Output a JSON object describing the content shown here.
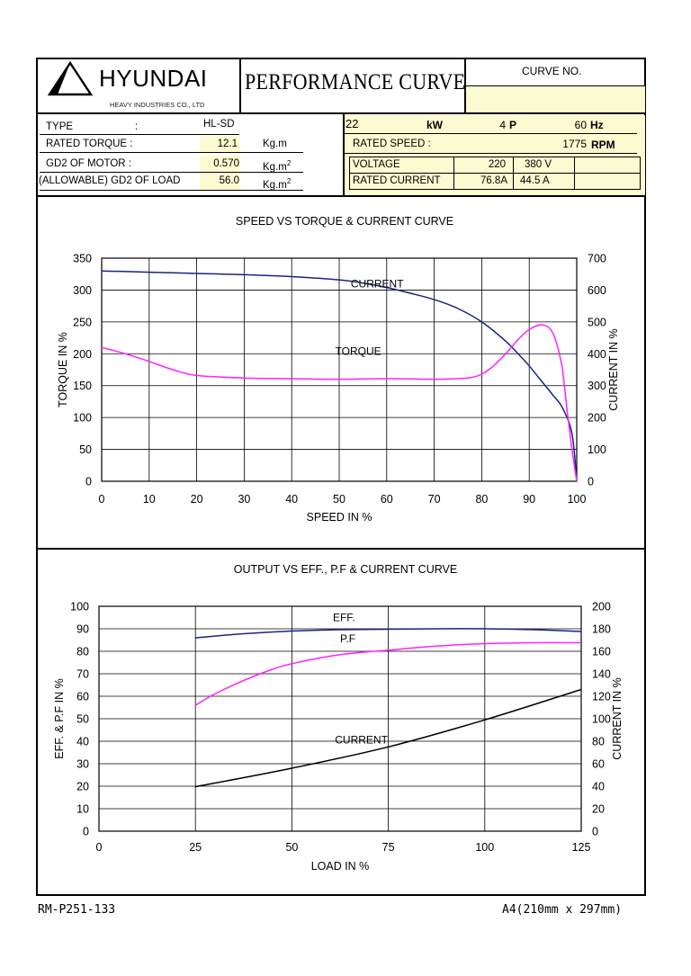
{
  "header": {
    "brand": "HYUNDAI",
    "brand_sub": "HEAVY INDUSTRIES CO., LTD",
    "title": "PERFORMANCE CURVE",
    "curve_no_label": "CURVE NO.",
    "curve_no_value": ""
  },
  "specs": {
    "type_label": "TYPE",
    "type_colon": ":",
    "type_value": "HL-SD",
    "rated_torque_label": "RATED TORQUE :",
    "rated_torque_value": "12.1",
    "rated_torque_unit": "Kg.m",
    "gd2_motor_label": "GD2 OF MOTOR :",
    "gd2_motor_value": "0.570",
    "gd2_motor_unit": "Kg.m",
    "gd2_motor_sup": "2",
    "gd2_load_label": "(ALLOWABLE) GD2 OF LOAD",
    "gd2_load_value": "56.0",
    "gd2_load_unit": "Kg.m",
    "gd2_load_sup": "2"
  },
  "rating": {
    "power_value": "22",
    "power_unit": "kW",
    "poles_value": "4",
    "poles_unit": "P",
    "freq_value": "60",
    "freq_unit": "Hz",
    "speed_label": "RATED   SPEED :",
    "speed_value": "1775",
    "speed_unit": "RPM",
    "voltage_label": "VOLTAGE",
    "voltage_1": "220",
    "voltage_2": "380 V",
    "current_label": "RATED CURRENT",
    "current_1": "76.8A",
    "current_2": "44.5 A"
  },
  "footer": {
    "left": "RM-P251-133",
    "right": "A4(210mm x 297mm)"
  },
  "colors": {
    "current": "#1a237e",
    "torque": "#ff22ff",
    "eff": "#1a237e",
    "pf": "#ff22ff",
    "current2": "#000000",
    "highlight": "#fbfad0"
  },
  "chart_data": [
    {
      "type": "line",
      "title": "SPEED VS TORQUE & CURRENT CURVE",
      "xlabel": "SPEED IN %",
      "ylabel": "TORQUE IN %",
      "y2label": "CURRENT IN %",
      "xlim": [
        0,
        100
      ],
      "ylim": [
        0,
        350
      ],
      "y2lim": [
        0,
        700
      ],
      "xticks": [
        "0",
        "10",
        "20",
        "30",
        "40",
        "50",
        "60",
        "70",
        "80",
        "90",
        "100"
      ],
      "yticks": [
        "0",
        "50",
        "100",
        "150",
        "200",
        "250",
        "300",
        "350"
      ],
      "y2ticks": [
        "0",
        "100",
        "200",
        "300",
        "400",
        "500",
        "600",
        "700"
      ],
      "grid": true,
      "series": [
        {
          "name": "CURRENT",
          "axis": "right",
          "color": "#1a237e",
          "x": [
            0,
            10,
            20,
            30,
            40,
            50,
            55,
            60,
            65,
            70,
            75,
            80,
            85,
            88,
            90,
            92,
            95,
            97,
            99,
            100
          ],
          "y": [
            660,
            656,
            652,
            648,
            642,
            632,
            622,
            608,
            590,
            570,
            542,
            500,
            440,
            395,
            362,
            325,
            270,
            230,
            150,
            0
          ]
        },
        {
          "name": "TORQUE",
          "axis": "left",
          "color": "#ff22ff",
          "x": [
            0,
            5,
            10,
            15,
            20,
            30,
            40,
            50,
            60,
            70,
            75,
            78,
            80,
            82,
            84,
            86,
            88,
            90,
            92,
            93,
            94,
            95,
            96,
            97,
            98,
            99,
            100
          ],
          "y": [
            210,
            200,
            188,
            175,
            166,
            162,
            161,
            160,
            161,
            160,
            161,
            163,
            168,
            178,
            192,
            208,
            225,
            238,
            245,
            245,
            242,
            232,
            210,
            175,
            110,
            50,
            0
          ]
        }
      ],
      "annotations": [
        "CURRENT",
        "TORQUE"
      ]
    },
    {
      "type": "line",
      "title": "OUTPUT VS EFF., P.F & CURRENT CURVE",
      "xlabel": "LOAD IN %",
      "ylabel": "EFF. & P.F IN %",
      "y2label": "CURRENT IN %",
      "xlim": [
        0,
        125
      ],
      "ylim": [
        0,
        100
      ],
      "y2lim": [
        0,
        200
      ],
      "xticks": [
        "0",
        "25",
        "50",
        "75",
        "100",
        "125"
      ],
      "yticks": [
        "0",
        "10",
        "20",
        "30",
        "40",
        "50",
        "60",
        "70",
        "80",
        "90",
        "100"
      ],
      "y2ticks": [
        "0",
        "20",
        "40",
        "60",
        "80",
        "100",
        "120",
        "140",
        "160",
        "180",
        "200"
      ],
      "grid": true,
      "series": [
        {
          "name": "EFF.",
          "axis": "left",
          "color": "#1a237e",
          "x": [
            25,
            37.5,
            50,
            62.5,
            75,
            87.5,
            100,
            112.5,
            125
          ],
          "y": [
            86,
            87.8,
            89,
            89.6,
            89.8,
            90,
            90,
            89.6,
            88.8
          ]
        },
        {
          "name": "P.F",
          "axis": "left",
          "color": "#ff22ff",
          "x": [
            25,
            30,
            37.5,
            45,
            50,
            62.5,
            75,
            87.5,
            100,
            112.5,
            125
          ],
          "y": [
            56,
            61,
            67,
            72,
            74.5,
            78.5,
            80.5,
            82.3,
            83.4,
            83.8,
            83.8
          ]
        },
        {
          "name": "CURRENT",
          "axis": "right",
          "color": "#000000",
          "x": [
            25,
            50,
            75,
            100,
            125
          ],
          "y": [
            39.5,
            56,
            75,
            99,
            126
          ]
        }
      ],
      "annotations": [
        "EFF.",
        "P.F",
        "CURRENT"
      ]
    }
  ]
}
